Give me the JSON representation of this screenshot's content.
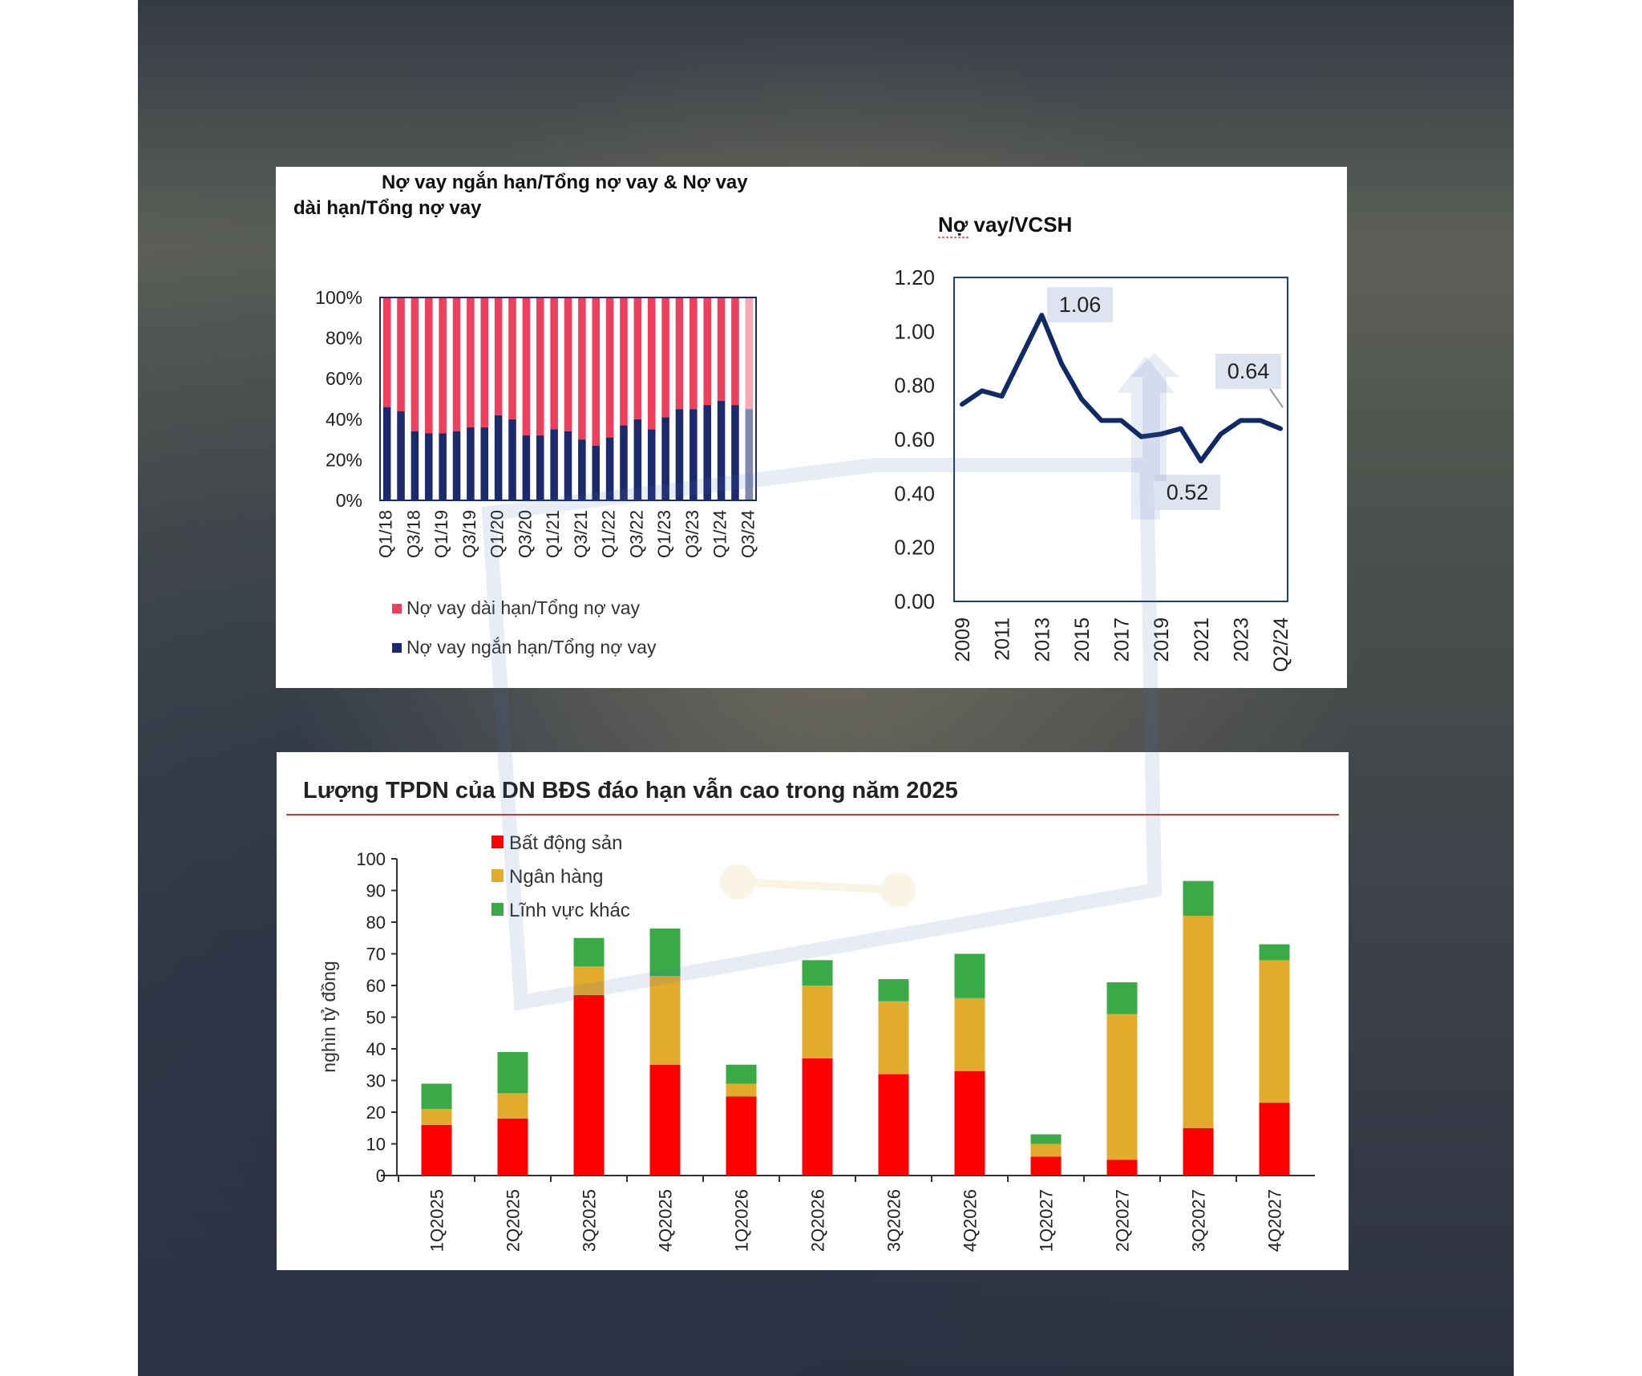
{
  "chart_data": [
    {
      "type": "bar",
      "stacked": true,
      "percent": true,
      "title": "Nợ vay ngắn hạn/Tổng nợ vay & Nợ vay dài hạn/Tổng nợ vay",
      "title_line1": "Nợ vay ngắn hạn/Tổng nợ vay & Nợ vay",
      "title_line2": "dài hạn/Tổng nợ vay",
      "categories": [
        "Q1/18",
        "Q2/18",
        "Q3/18",
        "Q4/18",
        "Q1/19",
        "Q2/19",
        "Q3/19",
        "Q4/19",
        "Q1/20",
        "Q2/20",
        "Q3/20",
        "Q4/20",
        "Q1/21",
        "Q2/21",
        "Q3/21",
        "Q4/21",
        "Q1/22",
        "Q2/22",
        "Q3/22",
        "Q4/22",
        "Q1/23",
        "Q2/23",
        "Q3/23",
        "Q4/23",
        "Q1/24",
        "Q2/24",
        "Q3/24"
      ],
      "tick_labels": [
        "Q1/18",
        "Q3/18",
        "Q1/19",
        "Q3/19",
        "Q1/20",
        "Q3/20",
        "Q1/21",
        "Q3/21",
        "Q1/22",
        "Q3/22",
        "Q1/23",
        "Q3/23",
        "Q1/24",
        "Q3/24"
      ],
      "y_ticks": [
        "0%",
        "20%",
        "40%",
        "60%",
        "80%",
        "100%"
      ],
      "ylim": [
        0,
        100
      ],
      "series": [
        {
          "name": "Nợ vay ngắn hạn/Tổng nợ vay",
          "color": "#1a2a6c",
          "values": [
            46,
            44,
            34,
            33,
            33,
            34,
            36,
            36,
            42,
            40,
            32,
            32,
            35,
            34,
            30,
            27,
            31,
            37,
            40,
            35,
            41,
            45,
            45,
            47,
            49,
            47,
            45
          ]
        },
        {
          "name": "Nợ vay dài hạn/Tổng nợ vay",
          "color": "#ee3f5c",
          "values": [
            54,
            56,
            66,
            67,
            67,
            66,
            64,
            64,
            58,
            60,
            68,
            68,
            65,
            66,
            70,
            73,
            69,
            63,
            60,
            65,
            59,
            55,
            55,
            53,
            51,
            53,
            55
          ]
        }
      ],
      "legend": [
        "Nợ vay dài hạn/Tổng nợ vay",
        "Nợ vay ngắn hạn/Tổng nợ vay"
      ],
      "legend_position": "bottom"
    },
    {
      "type": "line",
      "title": "Nợ vay/VCSH",
      "x": [
        "2009",
        "2010",
        "2011",
        "2012",
        "2013",
        "2014",
        "2015",
        "2016",
        "2017",
        "2018",
        "2019",
        "2020",
        "2021",
        "2022",
        "2023",
        "2024",
        "Q2/24"
      ],
      "tick_labels": [
        "2009",
        "2011",
        "2013",
        "2015",
        "2017",
        "2019",
        "2021",
        "2023",
        "Q2/24"
      ],
      "values": [
        0.73,
        0.78,
        0.76,
        0.91,
        1.06,
        0.88,
        0.75,
        0.67,
        0.67,
        0.61,
        0.62,
        0.64,
        0.52,
        0.62,
        0.67,
        0.67,
        0.64
      ],
      "y_ticks": [
        "0.00",
        "0.20",
        "0.40",
        "0.60",
        "0.80",
        "1.00",
        "1.20"
      ],
      "ylim": [
        0,
        1.2
      ],
      "color": "#0f2a66",
      "annotations": [
        "1.06",
        "0.52",
        "0.64"
      ]
    },
    {
      "type": "bar",
      "stacked": true,
      "title": "Lượng TPDN của DN BĐS đáo hạn vẫn cao trong năm 2025",
      "ylabel": "nghìn tỷ đồng",
      "ylim": [
        0,
        100
      ],
      "y_ticks": [
        "0",
        "10",
        "20",
        "30",
        "40",
        "50",
        "60",
        "70",
        "80",
        "90",
        "100"
      ],
      "categories": [
        "1Q2025",
        "2Q2025",
        "3Q2025",
        "4Q2025",
        "1Q2026",
        "2Q2026",
        "3Q2026",
        "4Q2026",
        "1Q2027",
        "2Q2027",
        "3Q2027",
        "4Q2027"
      ],
      "series": [
        {
          "name": "Bất động sản",
          "color": "#ff0000",
          "values": [
            16,
            18,
            57,
            35,
            25,
            37,
            32,
            33,
            6,
            5,
            15,
            23
          ]
        },
        {
          "name": "Ngân hàng",
          "color": "#e3ab2c",
          "values": [
            5,
            8,
            9,
            28,
            4,
            23,
            23,
            23,
            4,
            46,
            67,
            45
          ]
        },
        {
          "name": "Lĩnh vực khác",
          "color": "#3aaa46",
          "values": [
            8,
            13,
            9,
            15,
            6,
            8,
            7,
            14,
            3,
            10,
            11,
            5
          ]
        }
      ],
      "legend_position": "top-left"
    }
  ]
}
